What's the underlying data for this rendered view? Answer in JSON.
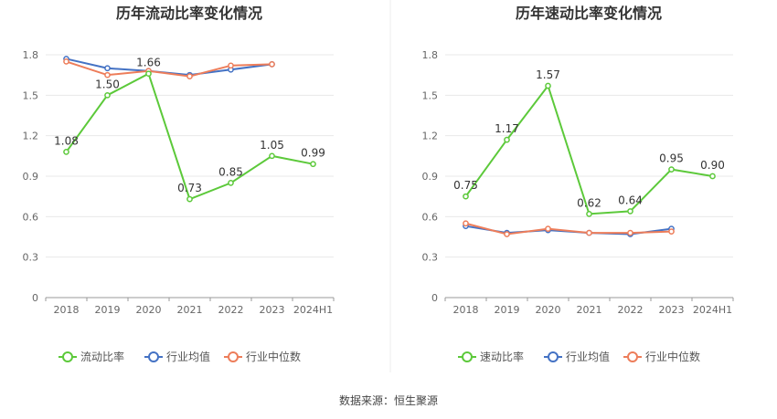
{
  "source": "数据来源：恒生聚源",
  "chart_data": [
    {
      "type": "line",
      "title": "历年流动比率变化情况",
      "categories": [
        "2018",
        "2019",
        "2020",
        "2021",
        "2022",
        "2023",
        "2024H1"
      ],
      "yticks": [
        "0",
        "0.3",
        "0.6",
        "0.9",
        "1.2",
        "1.5",
        "1.8"
      ],
      "ylim": [
        0,
        1.8
      ],
      "grid": true,
      "legend_position": "bottom",
      "series": [
        {
          "name": "流动比率",
          "color": "#5cc93a",
          "values": [
            1.08,
            1.5,
            1.66,
            0.73,
            0.85,
            1.05,
            0.99
          ],
          "labels": [
            "1.08",
            "1.50",
            "1.66",
            "0.73",
            "0.85",
            "1.05",
            "0.99"
          ]
        },
        {
          "name": "行业均值",
          "color": "#4472c4",
          "values": [
            1.77,
            1.7,
            1.68,
            1.65,
            1.69,
            1.73,
            null
          ]
        },
        {
          "name": "行业中位数",
          "color": "#ed7d5a",
          "values": [
            1.75,
            1.65,
            1.68,
            1.64,
            1.72,
            1.73,
            null
          ]
        }
      ]
    },
    {
      "type": "line",
      "title": "历年速动比率变化情况",
      "categories": [
        "2018",
        "2019",
        "2020",
        "2021",
        "2022",
        "2023",
        "2024H1"
      ],
      "yticks": [
        "0",
        "0.3",
        "0.6",
        "0.9",
        "1.2",
        "1.5",
        "1.8"
      ],
      "ylim": [
        0,
        1.8
      ],
      "grid": true,
      "legend_position": "bottom",
      "series": [
        {
          "name": "速动比率",
          "color": "#5cc93a",
          "values": [
            0.75,
            1.17,
            1.57,
            0.62,
            0.64,
            0.95,
            0.9
          ],
          "labels": [
            "0.75",
            "1.17",
            "1.57",
            "0.62",
            "0.64",
            "0.95",
            "0.90"
          ]
        },
        {
          "name": "行业均值",
          "color": "#4472c4",
          "values": [
            0.53,
            0.48,
            0.5,
            0.48,
            0.47,
            0.51,
            null
          ]
        },
        {
          "name": "行业中位数",
          "color": "#ed7d5a",
          "values": [
            0.55,
            0.47,
            0.51,
            0.48,
            0.48,
            0.49,
            null
          ]
        }
      ]
    }
  ]
}
